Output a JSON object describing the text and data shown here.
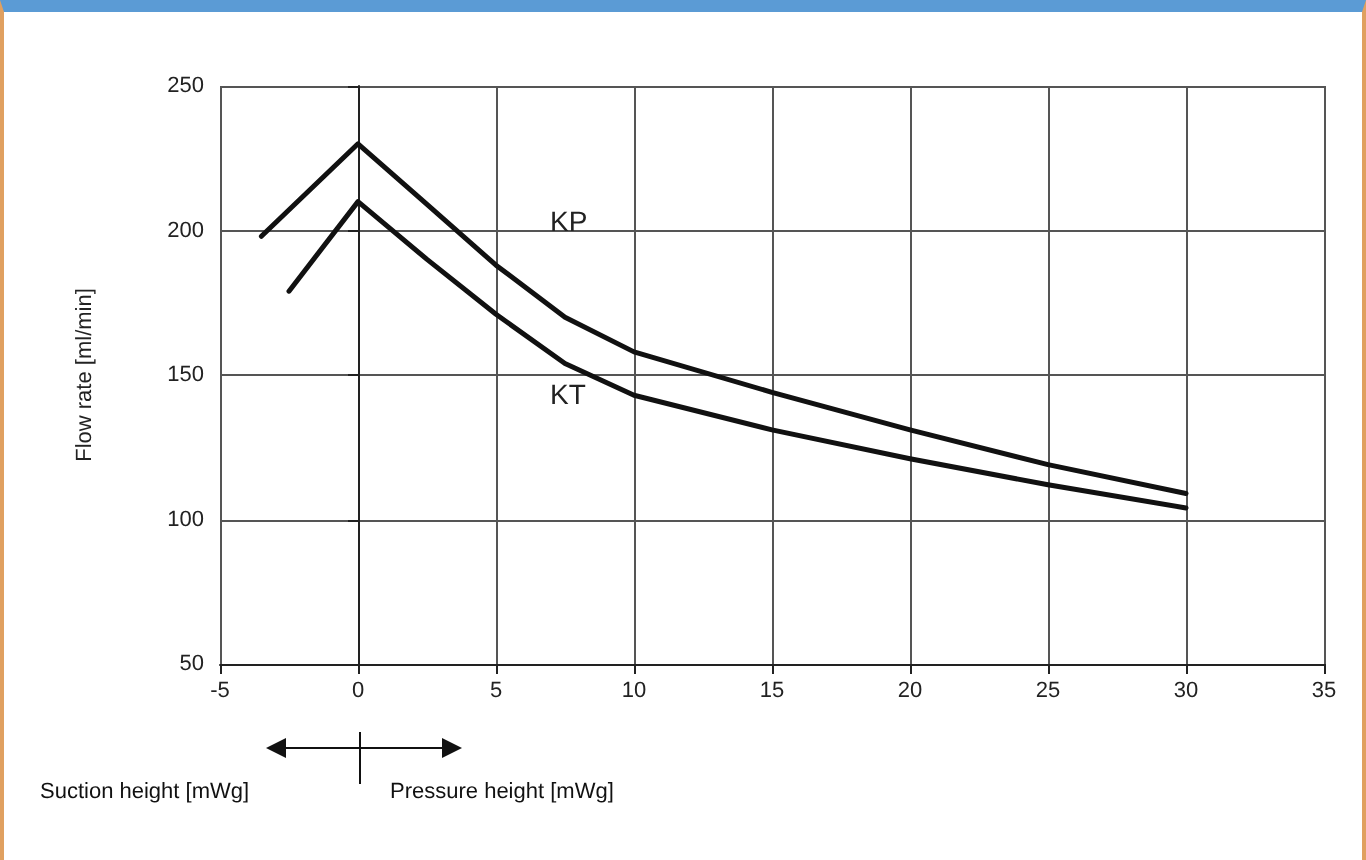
{
  "chart_data": {
    "type": "line",
    "ylabel": "Flow rate [ml/min]",
    "xlim": [
      -5,
      35
    ],
    "xticks": [
      -5,
      0,
      5,
      10,
      15,
      20,
      25,
      30,
      35
    ],
    "ylim": [
      50,
      250
    ],
    "yticks": [
      50,
      100,
      150,
      200,
      250
    ],
    "grid": true,
    "legend": false,
    "marker": "none",
    "line_style": "solid",
    "series": [
      {
        "name": "KP",
        "color": "#111111",
        "x": [
          -3.5,
          0,
          2.5,
          5,
          7.5,
          10,
          15,
          20,
          25,
          30
        ],
        "values": [
          198,
          230,
          209,
          188,
          170,
          158,
          144,
          131,
          119,
          109
        ]
      },
      {
        "name": "KT",
        "color": "#111111",
        "x": [
          -2.5,
          0,
          2.5,
          5,
          7.5,
          10,
          15,
          20,
          25,
          30
        ],
        "values": [
          179,
          210,
          190,
          171,
          154,
          143,
          131,
          121,
          112,
          104
        ]
      }
    ],
    "annotations": [
      "Suction height [mWg]",
      "Pressure height [mWg]"
    ]
  }
}
